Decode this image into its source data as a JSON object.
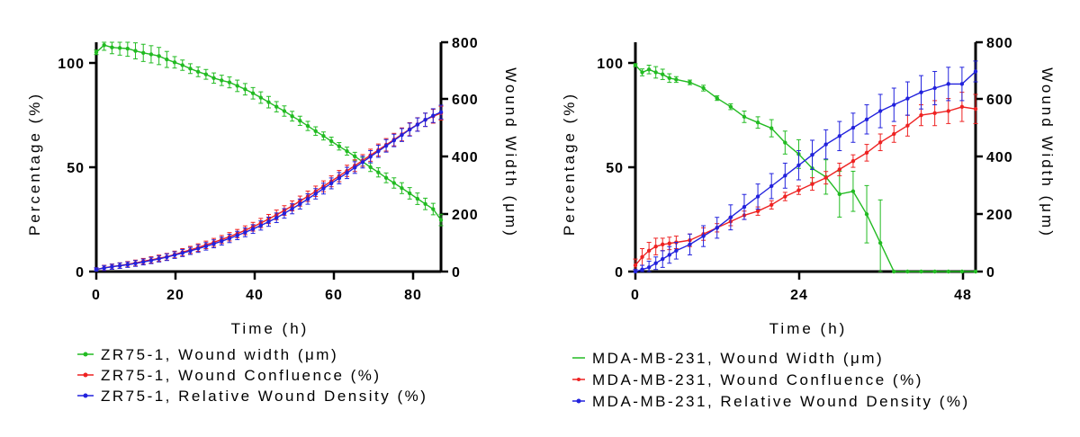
{
  "chart_data": [
    {
      "type": "line",
      "title": "",
      "xlabel": "Time (h)",
      "ylabel": "Percentage (%)",
      "y2label": "Wound Width (μm)",
      "xlim": [
        0,
        88
      ],
      "ylim": [
        0,
        110
      ],
      "y2lim": [
        0,
        800
      ],
      "xticks": [
        "0",
        "20",
        "40",
        "60",
        "80"
      ],
      "yticks": [
        "0",
        "50",
        "100"
      ],
      "y2ticks": [
        "0",
        "200",
        "400",
        "600",
        "800"
      ],
      "grid": false,
      "legend_position": "bottom",
      "series": [
        {
          "name": "ZR75-1, Wound width (μm)",
          "axis": "right",
          "color": "#22bb22",
          "x": [
            0,
            2,
            4,
            6,
            8,
            10,
            12,
            14,
            16,
            18,
            20,
            22,
            24,
            26,
            28,
            30,
            32,
            34,
            36,
            38,
            40,
            42,
            44,
            46,
            48,
            50,
            52,
            54,
            56,
            58,
            60,
            62,
            64,
            66,
            68,
            70,
            72,
            74,
            76,
            78,
            80,
            82,
            84,
            86,
            88
          ],
          "y": [
            765,
            790,
            782,
            780,
            778,
            770,
            763,
            758,
            752,
            740,
            730,
            720,
            708,
            697,
            688,
            675,
            667,
            660,
            648,
            636,
            622,
            607,
            591,
            575,
            560,
            542,
            526,
            508,
            490,
            473,
            455,
            437,
            420,
            402,
            383,
            364,
            346,
            327,
            309,
            291,
            273,
            254,
            236,
            218,
            180
          ],
          "err": [
            8,
            18,
            22,
            25,
            27,
            28,
            30,
            30,
            30,
            28,
            20,
            18,
            17,
            17,
            17,
            18,
            18,
            19,
            20,
            20,
            20,
            20,
            20,
            18,
            18,
            17,
            16,
            16,
            15,
            14,
            14,
            13,
            14,
            14,
            15,
            15,
            16,
            17,
            18,
            19,
            20,
            20,
            20,
            20,
            20
          ]
        },
        {
          "name": "ZR75-1, Wound Confluence (%)",
          "axis": "left",
          "color": "#ee2222",
          "x": [
            0,
            2,
            4,
            6,
            8,
            10,
            12,
            14,
            16,
            18,
            20,
            22,
            24,
            26,
            28,
            30,
            32,
            34,
            36,
            38,
            40,
            42,
            44,
            46,
            48,
            50,
            52,
            54,
            56,
            58,
            60,
            62,
            64,
            66,
            68,
            70,
            72,
            74,
            76,
            78,
            80,
            82,
            84,
            86,
            88
          ],
          "y": [
            1,
            1.8,
            2.4,
            2.9,
            3.5,
            4.1,
            4.9,
            5.6,
            6.4,
            7.1,
            8.2,
            9.3,
            10.4,
            11.5,
            12.8,
            14,
            15.4,
            16.7,
            18.2,
            19.8,
            21.5,
            23.3,
            25.2,
            27.2,
            29.3,
            31.5,
            33.8,
            36.1,
            38.5,
            40.9,
            43.3,
            45.8,
            48.3,
            50.8,
            53.3,
            55.8,
            58.3,
            60.8,
            63.3,
            65.8,
            68.3,
            70.6,
            72.8,
            74.5,
            76
          ],
          "err": [
            0.8,
            1.2,
            1.2,
            1.3,
            1.3,
            1.4,
            1.4,
            1.5,
            1.5,
            1.6,
            1.6,
            1.7,
            1.7,
            1.8,
            1.8,
            1.9,
            1.9,
            2,
            2,
            2.1,
            2.1,
            2.2,
            2.2,
            2.3,
            2.3,
            2.4,
            2.4,
            2.5,
            2.5,
            2.6,
            2.6,
            2.7,
            2.7,
            2.8,
            2.8,
            2.9,
            2.9,
            3,
            3,
            3.1,
            3.1,
            3.2,
            3.2,
            3.3,
            3.3
          ]
        },
        {
          "name": "ZR75-1, Relative Wound Density (%)",
          "axis": "left",
          "color": "#2222dd",
          "x": [
            0,
            2,
            4,
            6,
            8,
            10,
            12,
            14,
            16,
            18,
            20,
            22,
            24,
            26,
            28,
            30,
            32,
            34,
            36,
            38,
            40,
            42,
            44,
            46,
            48,
            50,
            52,
            54,
            56,
            58,
            60,
            62,
            64,
            66,
            68,
            70,
            72,
            74,
            76,
            78,
            80,
            82,
            84,
            86,
            88
          ],
          "y": [
            1,
            1.7,
            2.3,
            2.8,
            3.3,
            3.9,
            4.6,
            5.3,
            6.1,
            6.9,
            7.9,
            8.9,
            9.9,
            11,
            12.1,
            13.3,
            14.6,
            15.9,
            17.3,
            18.8,
            20.4,
            22.1,
            23.9,
            25.8,
            27.9,
            30.1,
            32.4,
            34.8,
            37.3,
            39.8,
            42.3,
            44.8,
            47.3,
            49.9,
            52.5,
            55.1,
            57.7,
            60.3,
            62.9,
            65.5,
            68.1,
            70.5,
            72.8,
            74.8,
            76.5
          ],
          "err": [
            0.8,
            1.2,
            1.2,
            1.3,
            1.3,
            1.4,
            1.4,
            1.5,
            1.5,
            1.6,
            1.6,
            1.7,
            1.7,
            1.8,
            1.8,
            1.9,
            1.9,
            2,
            2,
            2.1,
            2.1,
            2.2,
            2.2,
            2.3,
            2.3,
            2.4,
            2.4,
            2.5,
            2.5,
            2.6,
            2.6,
            2.7,
            2.7,
            2.8,
            2.8,
            2.9,
            2.9,
            3,
            3,
            3.1,
            3.1,
            3.2,
            3.2,
            3.3,
            3.3
          ]
        }
      ]
    },
    {
      "type": "line",
      "title": "",
      "xlabel": "Time (h)",
      "ylabel": "Percentage (%)",
      "y2label": "Wound Width (μm)",
      "xlim": [
        0,
        50
      ],
      "ylim": [
        0,
        110
      ],
      "y2lim": [
        0,
        800
      ],
      "xticks": [
        "0",
        "24",
        "48"
      ],
      "yticks": [
        "0",
        "50",
        "100"
      ],
      "y2ticks": [
        "0",
        "200",
        "400",
        "600",
        "800"
      ],
      "grid": false,
      "legend_position": "bottom",
      "series": [
        {
          "name": "MDA-MB-231, Wound Width (μm)",
          "axis": "right",
          "color": "#22bb22",
          "x": [
            0,
            1,
            2,
            3,
            4,
            5,
            6,
            8,
            10,
            12,
            14,
            16,
            18,
            20,
            22,
            24,
            26,
            28,
            30,
            32,
            34,
            36,
            38,
            40,
            42,
            44,
            46,
            48,
            50
          ],
          "y": [
            720,
            695,
            705,
            695,
            688,
            675,
            670,
            660,
            640,
            605,
            575,
            540,
            520,
            500,
            450,
            410,
            360,
            330,
            270,
            280,
            200,
            100,
            0,
            0,
            0,
            0,
            0,
            0,
            0
          ],
          "err": [
            5,
            12,
            15,
            20,
            18,
            15,
            10,
            8,
            10,
            8,
            10,
            20,
            20,
            30,
            40,
            50,
            50,
            60,
            80,
            70,
            100,
            150,
            0,
            0,
            0,
            0,
            0,
            0,
            0
          ]
        },
        {
          "name": "MDA-MB-231, Wound Confluence (%)",
          "axis": "left",
          "color": "#ee2222",
          "x": [
            0,
            1,
            2,
            3,
            4,
            5,
            6,
            8,
            10,
            12,
            14,
            16,
            18,
            20,
            22,
            24,
            26,
            28,
            30,
            32,
            34,
            36,
            38,
            40,
            42,
            44,
            46,
            48,
            50
          ],
          "y": [
            3,
            7,
            10,
            12,
            13,
            13.5,
            14,
            15,
            18,
            21,
            24,
            27,
            29,
            32,
            36,
            39,
            42,
            45,
            49,
            53,
            57,
            62,
            66,
            70,
            75,
            76,
            77,
            79,
            78
          ],
          "err": [
            3,
            4,
            4,
            4,
            3,
            3,
            3,
            3,
            3,
            2,
            2,
            2,
            2,
            2,
            2,
            2,
            3,
            3,
            3,
            3,
            4,
            4,
            4,
            5,
            5,
            6,
            6,
            7,
            7
          ]
        },
        {
          "name": "MDA-MB-231, Relative Wound Density (%)",
          "axis": "left",
          "color": "#2222dd",
          "x": [
            0,
            1,
            2,
            3,
            4,
            5,
            6,
            8,
            10,
            12,
            14,
            16,
            18,
            20,
            22,
            24,
            26,
            28,
            30,
            32,
            34,
            36,
            38,
            40,
            42,
            44,
            46,
            48,
            50
          ],
          "y": [
            0,
            1,
            2,
            4,
            6,
            8,
            10,
            13,
            17,
            21,
            26,
            31,
            36,
            41,
            46,
            51,
            56,
            61,
            65,
            69,
            73,
            77,
            80,
            83,
            86,
            88,
            90,
            90,
            96
          ],
          "err": [
            1,
            2,
            3,
            3,
            4,
            4,
            4,
            5,
            5,
            5,
            6,
            6,
            6,
            6,
            6,
            7,
            7,
            7,
            7,
            7,
            7,
            8,
            8,
            8,
            8,
            8,
            8,
            8,
            5
          ]
        }
      ]
    }
  ]
}
